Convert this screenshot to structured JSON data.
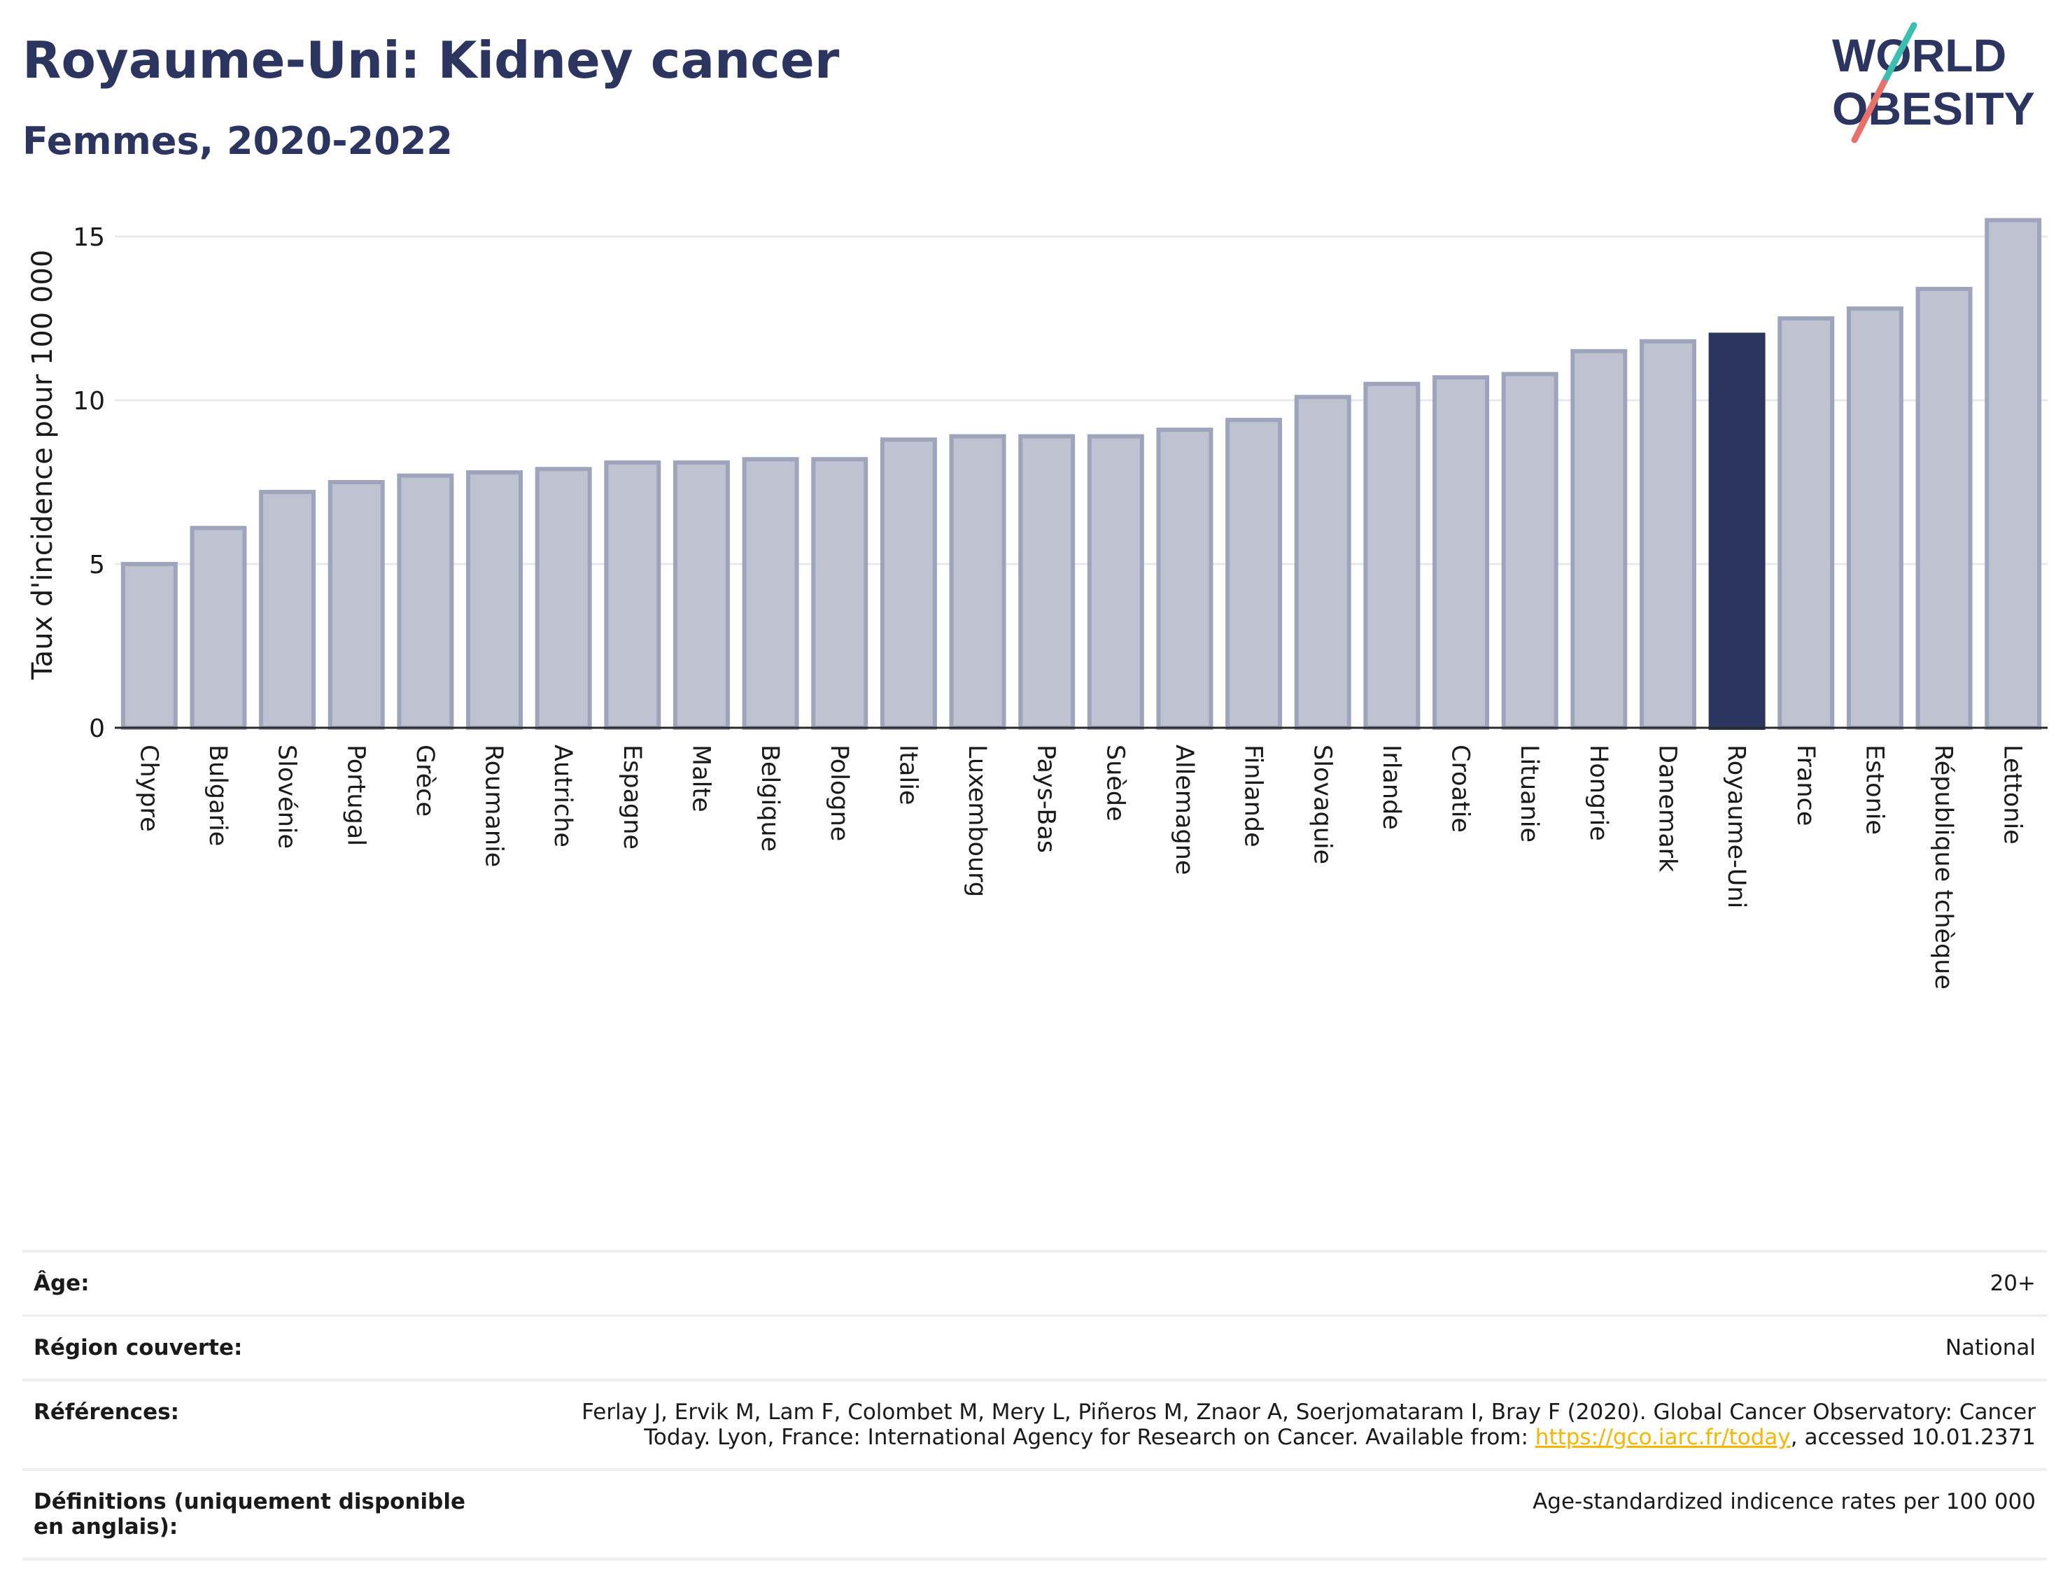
{
  "header": {
    "title": "Royaume-Uni: Kidney cancer",
    "subtitle": "Femmes, 2020-2022"
  },
  "logo": {
    "line1": "WORLD",
    "line2": "OBESITY"
  },
  "colors": {
    "bar_default": "#bfc3d1",
    "bar_border": "#9ea4bb",
    "bar_highlight": "#2b3560",
    "title": "#2b3560",
    "link": "#f2b705",
    "logo_teal": "#3cbfae",
    "logo_coral": "#e8706a"
  },
  "chart_data": {
    "type": "bar",
    "ylabel": "Taux d'incidence pour 100 000",
    "xlabel": "",
    "ylim": [
      0,
      16.5
    ],
    "yticks": [
      0,
      5,
      10,
      15
    ],
    "grid": true,
    "highlight": "Royaume-Uni",
    "categories": [
      "Chypre",
      "Bulgarie",
      "Slovénie",
      "Portugal",
      "Grèce",
      "Roumanie",
      "Autriche",
      "Espagne",
      "Malte",
      "Belgique",
      "Pologne",
      "Italie",
      "Luxembourg",
      "Pays-Bas",
      "Suède",
      "Allemagne",
      "Finlande",
      "Slovaquie",
      "Irlande",
      "Croatie",
      "Lituanie",
      "Hongrie",
      "Danemark",
      "Royaume-Uni",
      "France",
      "Estonie",
      "République tchèque",
      "Lettonie"
    ],
    "values": [
      5.0,
      6.1,
      7.2,
      7.5,
      7.7,
      7.8,
      7.9,
      8.1,
      8.1,
      8.2,
      8.2,
      8.8,
      8.9,
      8.9,
      8.9,
      9.1,
      9.4,
      10.1,
      10.5,
      10.7,
      10.8,
      11.5,
      11.8,
      12.0,
      12.5,
      12.8,
      13.4,
      15.5
    ]
  },
  "info": {
    "age_label": "Âge:",
    "age_value": "20+",
    "region_label": "Région couverte:",
    "region_value": "National",
    "refs_label": "Références:",
    "refs_text_before": "Ferlay J, Ervik M, Lam F, Colombet M, Mery L, Piñeros M, Znaor A, Soerjomataram I, Bray F (2020). Global Cancer Observatory: Cancer Today. Lyon, France: International Agency for Research on Cancer. Available from: ",
    "refs_link": "https://gco.iarc.fr/today",
    "refs_text_after": ", accessed 10.01.2371",
    "defs_label": "Définitions (uniquement disponible en anglais):",
    "defs_value": "Age-standardized indicence rates per 100 000"
  }
}
